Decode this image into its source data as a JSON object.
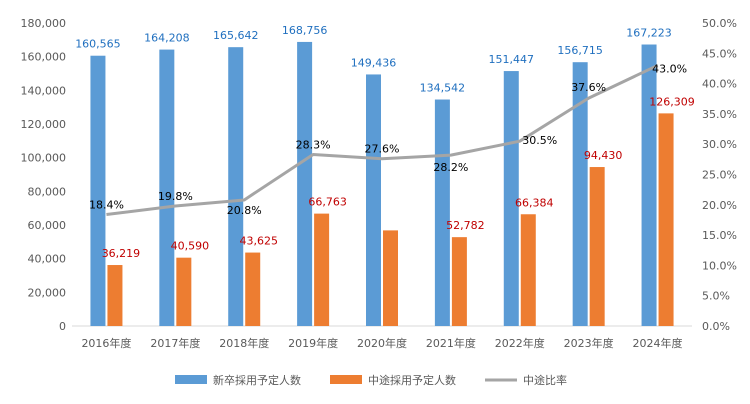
{
  "chart_data": {
    "type": "bar",
    "categories": [
      "2016年度",
      "2017年度",
      "2018年度",
      "2019年度",
      "2020年度",
      "2021年度",
      "2022年度",
      "2023年度",
      "2024年度"
    ],
    "series": [
      {
        "name": "新卒採用予定人数",
        "kind": "bar",
        "axis": "left",
        "color": "#5b9bd5",
        "values": [
          160565,
          164208,
          165642,
          168756,
          149436,
          134542,
          151447,
          156715,
          167223
        ],
        "labels": [
          "160,565",
          "164,208",
          "165,642",
          "168,756",
          "149,436",
          "134,542",
          "151,447",
          "156,715",
          "167,223"
        ]
      },
      {
        "name": "中途採用予定人数",
        "kind": "bar",
        "axis": "left",
        "color": "#ed7d31",
        "values": [
          36219,
          40590,
          43625,
          66763,
          56800,
          52782,
          66384,
          94430,
          126309
        ],
        "labels": [
          "36,219",
          "40,590",
          "43,625",
          "66,763",
          "",
          "52,782",
          "66,384",
          "94,430",
          "126,309"
        ]
      },
      {
        "name": "中途比率",
        "kind": "line",
        "axis": "right",
        "color": "#a5a5a5",
        "values": [
          18.4,
          19.8,
          20.8,
          28.3,
          27.6,
          28.2,
          30.5,
          37.6,
          43.0
        ],
        "labels": [
          "18.4%",
          "19.8%",
          "20.8%",
          "28.3%",
          "27.6%",
          "28.2%",
          "30.5%",
          "37.6%",
          "43.0%"
        ]
      }
    ],
    "ylim": [
      0,
      180000
    ],
    "y2lim": [
      0,
      50
    ],
    "yticks": [
      "0",
      "20,000",
      "40,000",
      "60,000",
      "80,000",
      "100,000",
      "120,000",
      "140,000",
      "160,000",
      "180,000"
    ],
    "y2ticks": [
      "0.0%",
      "5.0%",
      "10.0%",
      "15.0%",
      "20.0%",
      "25.0%",
      "30.0%",
      "35.0%",
      "40.0%",
      "45.0%",
      "50.0%"
    ],
    "grid": false,
    "legend": "bottom",
    "title": "",
    "xlabel": "",
    "ylabel": ""
  }
}
